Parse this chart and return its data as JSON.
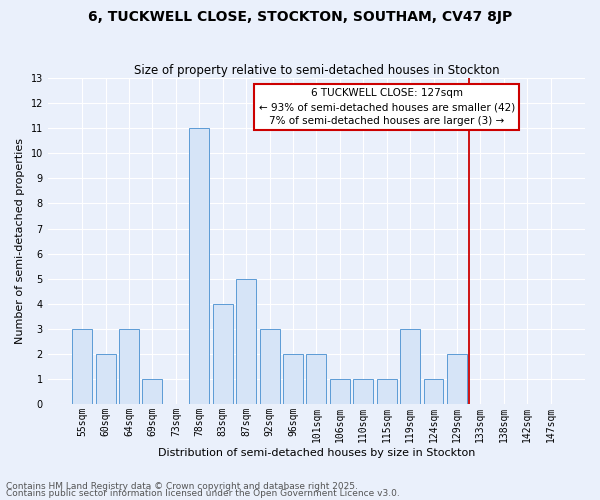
{
  "title": "6, TUCKWELL CLOSE, STOCKTON, SOUTHAM, CV47 8JP",
  "subtitle": "Size of property relative to semi-detached houses in Stockton",
  "xlabel": "Distribution of semi-detached houses by size in Stockton",
  "ylabel": "Number of semi-detached properties",
  "categories": [
    "55sqm",
    "60sqm",
    "64sqm",
    "69sqm",
    "73sqm",
    "78sqm",
    "83sqm",
    "87sqm",
    "92sqm",
    "96sqm",
    "101sqm",
    "106sqm",
    "110sqm",
    "115sqm",
    "119sqm",
    "124sqm",
    "129sqm",
    "133sqm",
    "138sqm",
    "142sqm",
    "147sqm"
  ],
  "values": [
    3,
    2,
    3,
    1,
    0,
    11,
    4,
    5,
    3,
    2,
    2,
    1,
    1,
    1,
    3,
    1,
    2,
    0,
    0,
    0,
    0
  ],
  "bar_color": "#d6e4f7",
  "bar_edgecolor": "#5b9bd5",
  "background_color": "#eaf0fb",
  "grid_color": "#ffffff",
  "vline_x": 16.5,
  "vline_color": "#cc0000",
  "annotation_text": "6 TUCKWELL CLOSE: 127sqm\n← 93% of semi-detached houses are smaller (42)\n7% of semi-detached houses are larger (3) →",
  "annotation_box_color": "#ffffff",
  "annotation_box_edgecolor": "#cc0000",
  "ylim": [
    0,
    13
  ],
  "yticks": [
    0,
    1,
    2,
    3,
    4,
    5,
    6,
    7,
    8,
    9,
    10,
    11,
    12,
    13
  ],
  "footnote1": "Contains HM Land Registry data © Crown copyright and database right 2025.",
  "footnote2": "Contains public sector information licensed under the Open Government Licence v3.0.",
  "title_fontsize": 10,
  "subtitle_fontsize": 8.5,
  "xlabel_fontsize": 8,
  "ylabel_fontsize": 8,
  "tick_fontsize": 7,
  "annotation_fontsize": 7.5,
  "footnote_fontsize": 6.5
}
